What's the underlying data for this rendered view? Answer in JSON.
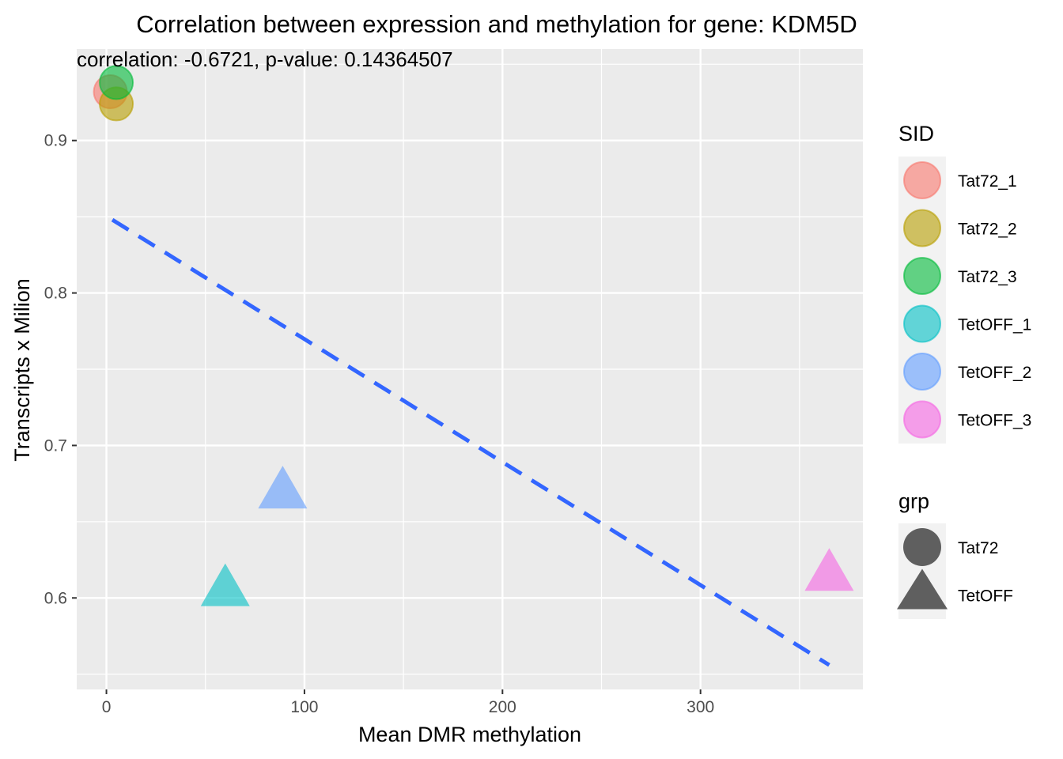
{
  "chart_data": {
    "type": "scatter",
    "title": "Correlation between expression and methylation for gene: KDM5D",
    "annotation": "correlation: -0.6721, p-value: 0.14364507",
    "xlabel": "Mean DMR methylation",
    "ylabel": "Transcripts x Milion",
    "xlim": [
      -15,
      382
    ],
    "ylim": [
      0.54,
      0.96
    ],
    "x_ticks": [
      0,
      100,
      200,
      300
    ],
    "y_ticks": [
      0.6,
      0.7,
      0.8,
      0.9
    ],
    "x_tick_labels": [
      "0",
      "100",
      "200",
      "300"
    ],
    "y_tick_labels": [
      "0.6",
      "0.7",
      "0.8",
      "0.9"
    ],
    "grid": true,
    "points": [
      {
        "sid": "Tat72_1",
        "grp": "Tat72",
        "x": 2,
        "y": 0.932
      },
      {
        "sid": "Tat72_2",
        "grp": "Tat72",
        "x": 5,
        "y": 0.924
      },
      {
        "sid": "Tat72_3",
        "grp": "Tat72",
        "x": 5,
        "y": 0.938
      },
      {
        "sid": "TetOFF_1",
        "grp": "TetOFF",
        "x": 60,
        "y": 0.604
      },
      {
        "sid": "TetOFF_2",
        "grp": "TetOFF",
        "x": 89,
        "y": 0.668
      },
      {
        "sid": "TetOFF_3",
        "grp": "TetOFF",
        "x": 365,
        "y": 0.614
      }
    ],
    "trend_line": {
      "style": "dashed",
      "color": "#3366ff",
      "x": [
        3,
        365
      ],
      "y": [
        0.848,
        0.556
      ]
    },
    "legend_sid": {
      "title": "SID",
      "position": "right",
      "items": [
        {
          "label": "Tat72_1",
          "color": "#f8766d"
        },
        {
          "label": "Tat72_2",
          "color": "#b79f00"
        },
        {
          "label": "Tat72_3",
          "color": "#00ba38"
        },
        {
          "label": "TetOFF_1",
          "color": "#00bfc4"
        },
        {
          "label": "TetOFF_2",
          "color": "#619cff"
        },
        {
          "label": "TetOFF_3",
          "color": "#f564e3"
        }
      ]
    },
    "legend_grp": {
      "title": "grp",
      "position": "right",
      "items": [
        {
          "label": "Tat72",
          "shape": "circle"
        },
        {
          "label": "TetOFF",
          "shape": "triangle"
        }
      ]
    }
  }
}
